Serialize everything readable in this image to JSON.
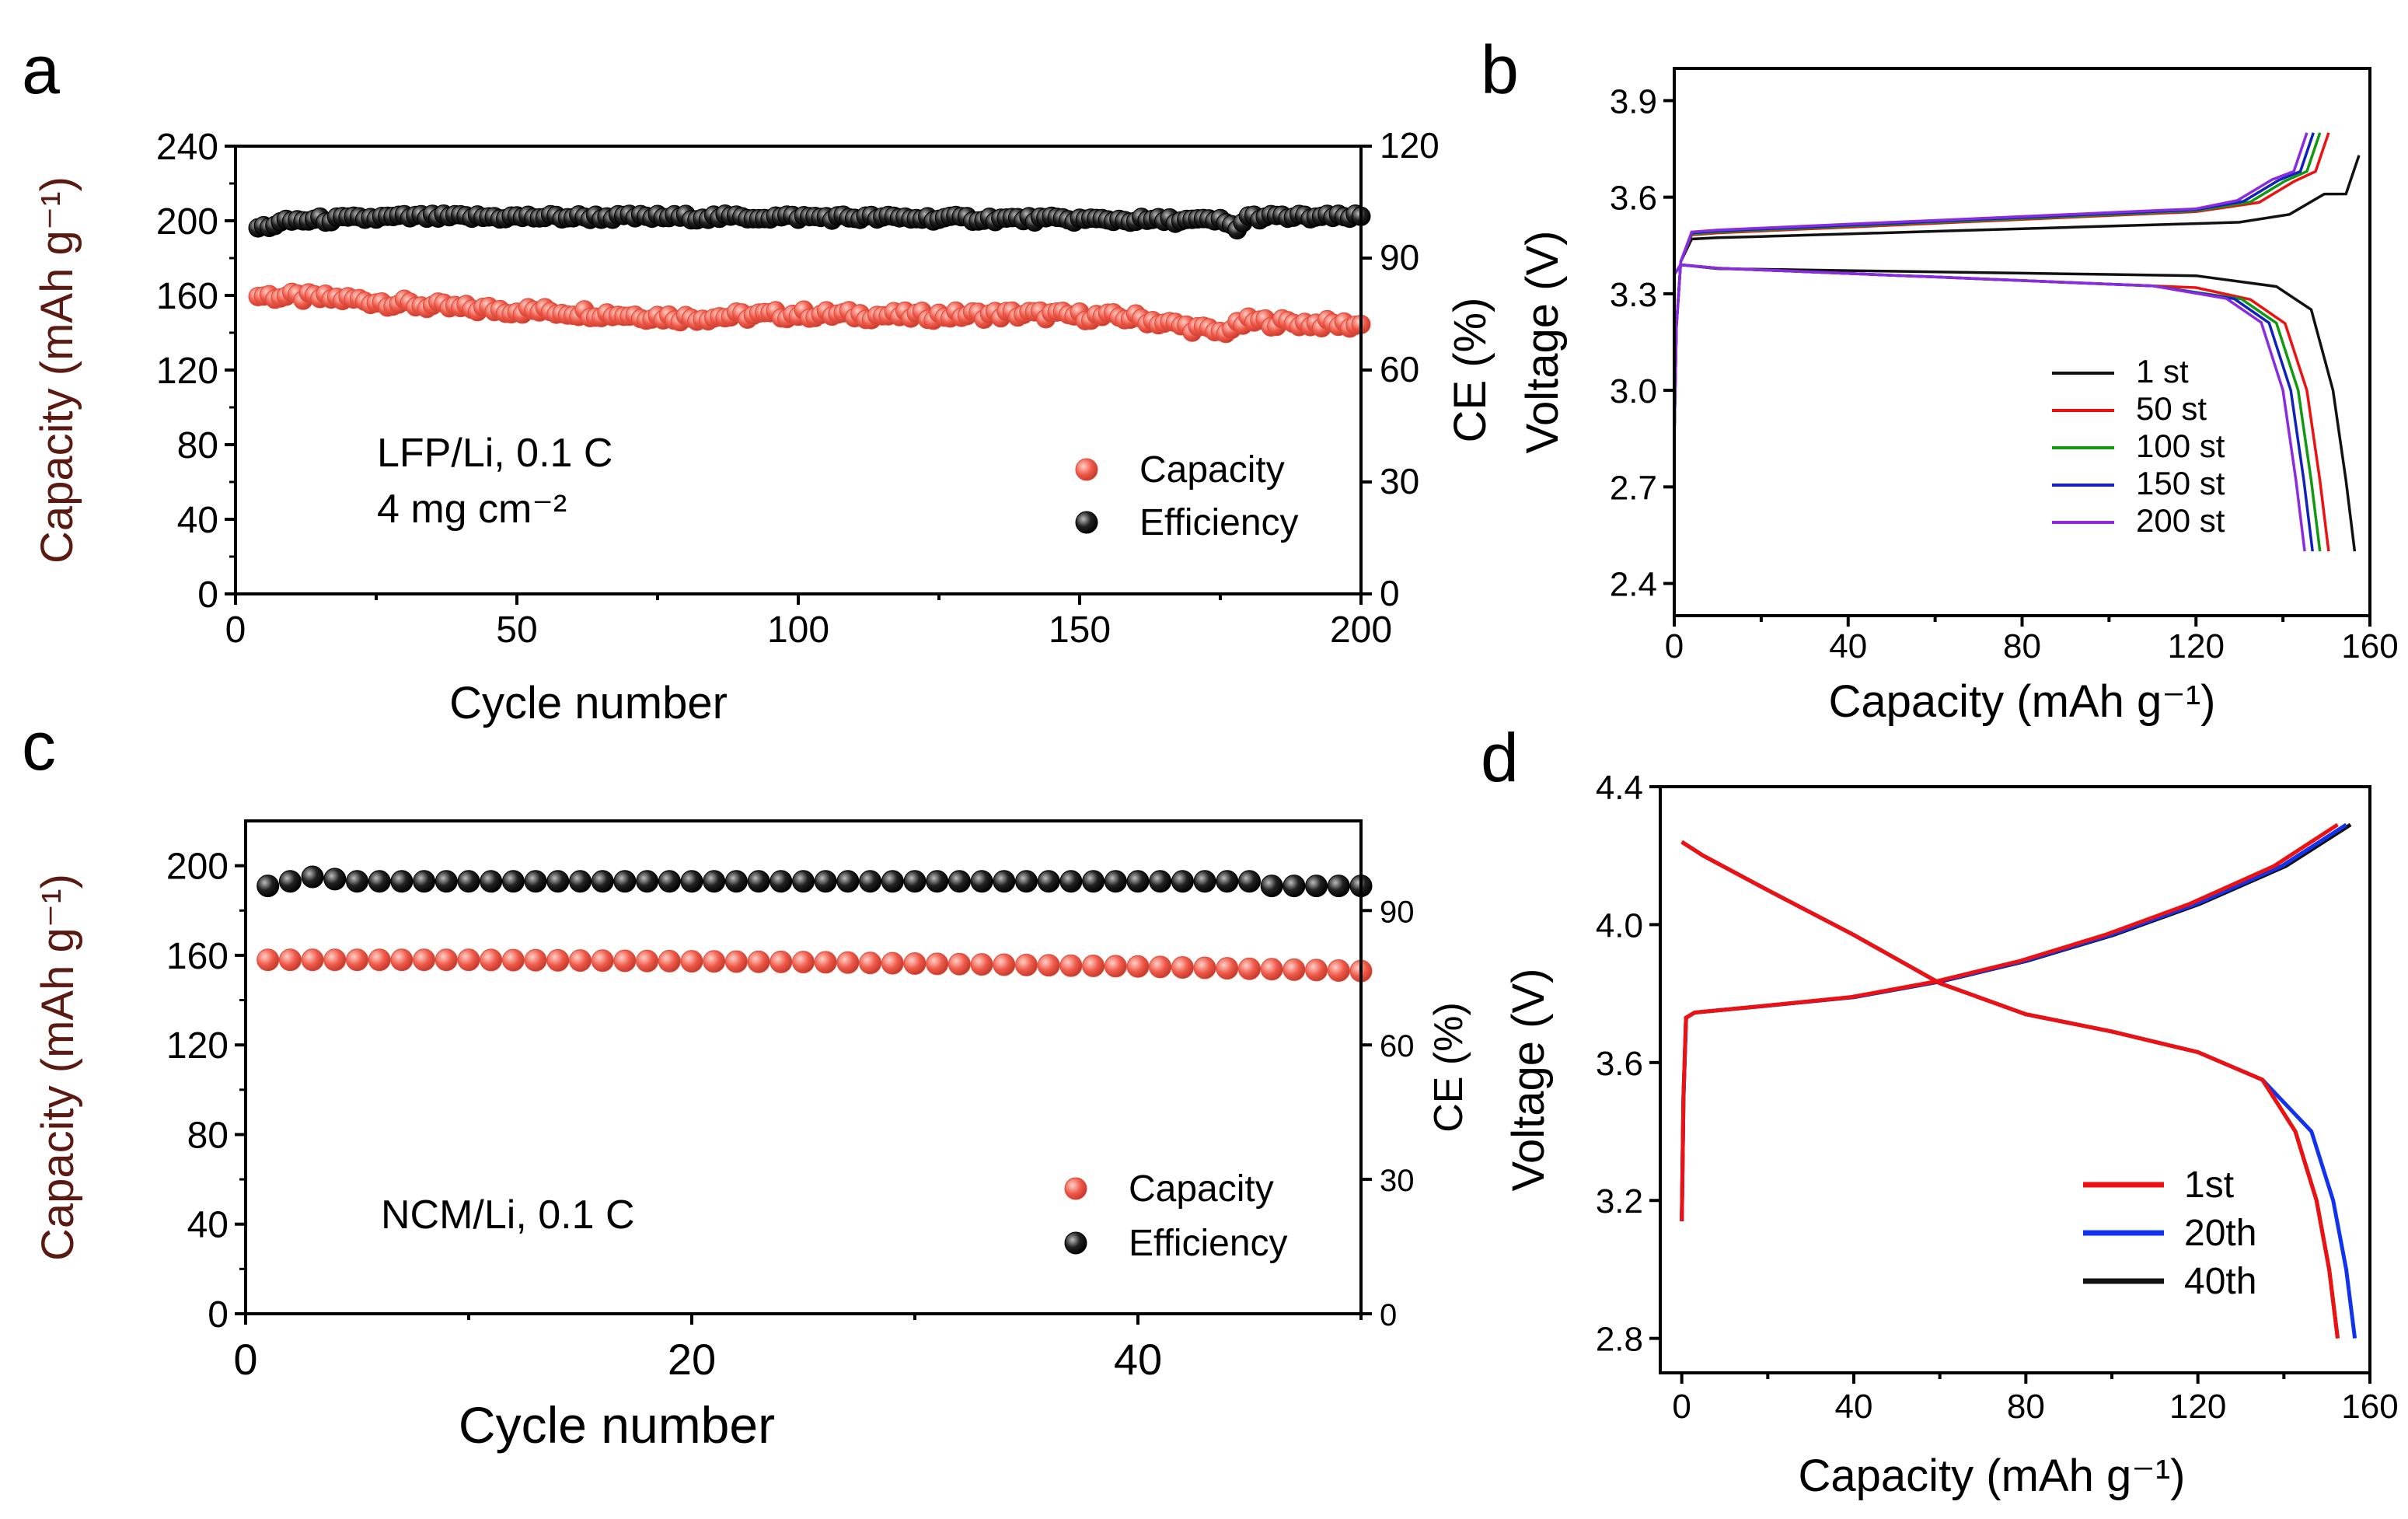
{
  "figure": {
    "colors": {
      "capacity": "#f05a4a",
      "efficiency": "#111111",
      "axis_left_title": "#5a1a12"
    }
  },
  "chart_data": [
    {
      "panel": "a",
      "type": "scatter",
      "xlabel": "Cycle number",
      "ylabel": "Capacity (mAh g⁻¹)",
      "ylabel2": "CE (%)",
      "xlim": [
        0,
        200
      ],
      "ylim": [
        0,
        240
      ],
      "y2lim": [
        0,
        120
      ],
      "xticks": [
        "0",
        "50",
        "100",
        "150",
        "200"
      ],
      "yticks": [
        "0",
        "40",
        "80",
        "120",
        "160",
        "200",
        "240"
      ],
      "y2ticks": [
        "0",
        "30",
        "60",
        "90",
        "120"
      ],
      "annotations": [
        "LFP/Li, 0.1 C",
        "4 mg cm⁻²"
      ],
      "legend": [
        "Capacity",
        "Efficiency"
      ],
      "legend_position": "bottom-right",
      "series": [
        {
          "name": "Capacity",
          "axis": "left",
          "x_range": [
            4,
            200
          ],
          "y_points": [
            [
              4,
              160
            ],
            [
              20,
              158
            ],
            [
              40,
              153
            ],
            [
              60,
              151
            ],
            [
              80,
              148
            ],
            [
              100,
              150
            ],
            [
              120,
              149
            ],
            [
              140,
              150
            ],
            [
              160,
              148
            ],
            [
              175,
              140
            ],
            [
              180,
              146
            ],
            [
              200,
              144
            ]
          ]
        },
        {
          "name": "Efficiency",
          "axis": "right",
          "x_range": [
            4,
            200
          ],
          "y_points": [
            [
              4,
              98
            ],
            [
              10,
              100
            ],
            [
              30,
              101
            ],
            [
              100,
              101
            ],
            [
              175,
              100
            ],
            [
              178,
              98
            ],
            [
              180,
              101
            ],
            [
              200,
              101
            ]
          ]
        }
      ]
    },
    {
      "panel": "b",
      "type": "line",
      "xlabel": "Capacity (mAh g⁻¹)",
      "ylabel": "Voltage (V)",
      "xlim": [
        0,
        160
      ],
      "ylim": [
        2.3,
        4.0
      ],
      "xticks": [
        "0",
        "40",
        "80",
        "120",
        "160"
      ],
      "yticks": [
        "2.4",
        "2.7",
        "3.0",
        "3.3",
        "3.6",
        "3.9"
      ],
      "legend": [
        "1 st",
        "50 st",
        "100 st",
        "150 st",
        "200 st"
      ],
      "legend_position": "bottom-right",
      "series": [
        {
          "name": "1 st",
          "color": "#111111",
          "charge_end": 157.5,
          "charge_top": 3.73,
          "discharge_end": 156.5
        },
        {
          "name": "50 st",
          "color": "#ee1111",
          "charge_end": 150.5,
          "charge_top": 3.8,
          "discharge_end": 150.5
        },
        {
          "name": "100 st",
          "color": "#119911",
          "charge_end": 148.5,
          "charge_top": 3.8,
          "discharge_end": 148.5
        },
        {
          "name": "150 st",
          "color": "#1122bb",
          "charge_end": 147,
          "charge_top": 3.8,
          "discharge_end": 146.8
        },
        {
          "name": "200 st",
          "color": "#8a2be2",
          "charge_end": 145.5,
          "charge_top": 3.8,
          "discharge_end": 145
        }
      ]
    },
    {
      "panel": "c",
      "type": "scatter",
      "xlabel": "Cycle number",
      "ylabel": "Capacity (mAh g⁻¹)",
      "ylabel2": "CE (%)",
      "xlim": [
        0,
        50
      ],
      "ylim": [
        0,
        220
      ],
      "y2lim": [
        0,
        110
      ],
      "xticks": [
        "0",
        "20",
        "40"
      ],
      "yticks": [
        "0",
        "40",
        "80",
        "120",
        "160",
        "200"
      ],
      "y2ticks": [
        "0",
        "30",
        "60",
        "90"
      ],
      "annotations": [
        "NCM/Li, 0.1 C"
      ],
      "legend": [
        "Capacity",
        "Efficiency"
      ],
      "legend_position": "bottom-right",
      "series": [
        {
          "name": "Capacity",
          "axis": "left",
          "x_range": [
            1,
            50
          ],
          "y_points": [
            [
              1,
              158
            ],
            [
              10,
              158
            ],
            [
              25,
              157
            ],
            [
              40,
              155
            ],
            [
              50,
              153
            ]
          ]
        },
        {
          "name": "Efficiency",
          "axis": "right",
          "x_range": [
            1,
            50
          ],
          "y_points": [
            [
              1,
              95.5
            ],
            [
              3,
              97.5
            ],
            [
              5,
              96.5
            ],
            [
              45,
              96.5
            ],
            [
              46,
              95.5
            ],
            [
              50,
              95.5
            ]
          ]
        }
      ]
    },
    {
      "panel": "d",
      "type": "line",
      "xlabel": "Capacity (mAh g⁻¹)",
      "ylabel": "Voltage (V)",
      "xlim": [
        -5,
        160
      ],
      "ylim": [
        2.7,
        4.4
      ],
      "xticks": [
        "0",
        "40",
        "80",
        "120",
        "160"
      ],
      "yticks": [
        "2.8",
        "3.2",
        "3.6",
        "4.0",
        "4.4"
      ],
      "legend": [
        "1st",
        "20th",
        "40th"
      ],
      "legend_position": "bottom-right",
      "series": [
        {
          "name": "1st",
          "color": "#ee1111",
          "charge_end": 152.5,
          "discharge_end": 152.5
        },
        {
          "name": "20th",
          "color": "#1133ee",
          "charge_end": 154.5,
          "discharge_end": 156.5
        },
        {
          "name": "40th",
          "color": "#111111",
          "charge_end": 155.5,
          "discharge_end": 152.5
        }
      ]
    }
  ]
}
